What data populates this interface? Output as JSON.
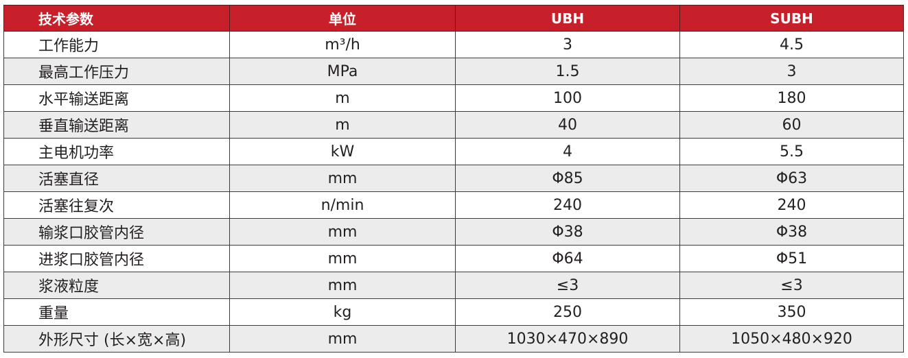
{
  "header": [
    "技术参数",
    "单位",
    "UBH",
    "SUBH"
  ],
  "rows": [
    [
      "工作能力",
      "m³/h",
      "3",
      "4.5"
    ],
    [
      "最高工作压力",
      "MPa",
      "1.5",
      "3"
    ],
    [
      "水平输送距离",
      "m",
      "100",
      "180"
    ],
    [
      "垂直输送距离",
      "m",
      "40",
      "60"
    ],
    [
      "主电机功率",
      "kW",
      "4",
      "5.5"
    ],
    [
      "活塞直径",
      "mm",
      "Φ85",
      "Φ63"
    ],
    [
      "活塞往复次",
      "n/min",
      "240",
      "240"
    ],
    [
      "输浆口胶管内径",
      "mm",
      "Φ38",
      "Φ38"
    ],
    [
      "进浆口胶管内径",
      "mm",
      "Φ64",
      "Φ51"
    ],
    [
      "浆液粒度",
      "mm",
      "≤3",
      "≤3"
    ],
    [
      "重量",
      "kg",
      "250",
      "350"
    ],
    [
      "外形尺寸 (长×宽×高)",
      "mm",
      "1030×470×890",
      "1050×480×920"
    ]
  ],
  "colors": {
    "header_bg": "#c8202a",
    "alt_row_bg": "#ececec"
  }
}
